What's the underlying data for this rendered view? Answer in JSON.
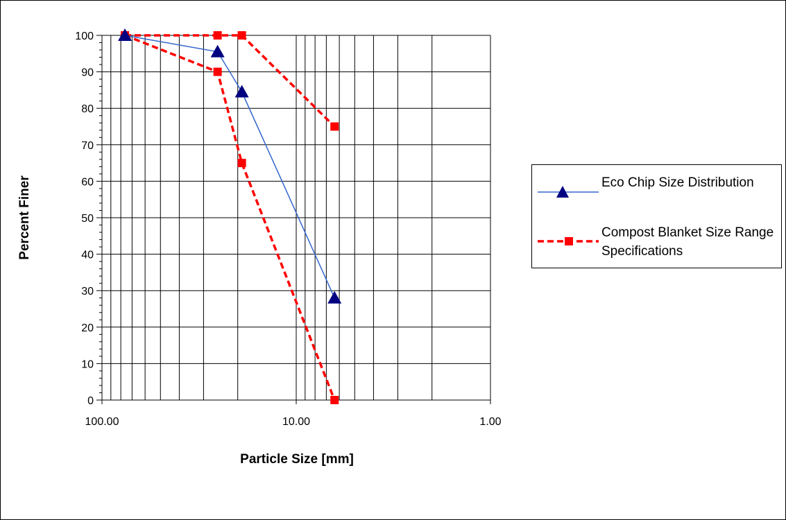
{
  "chart_data": {
    "type": "line",
    "xlabel": "Particle Size [mm]",
    "ylabel": "Percent Finer",
    "x_scale": "log",
    "x_reversed": true,
    "xlim": [
      100,
      1
    ],
    "ylim": [
      0,
      100
    ],
    "x_ticks": [
      "100.00",
      "10.00",
      "1.00"
    ],
    "y_ticks": [
      "0",
      "10",
      "20",
      "30",
      "40",
      "50",
      "60",
      "70",
      "80",
      "90",
      "100"
    ],
    "grid": {
      "vertical": true,
      "horizontal": true
    },
    "legend_position": "right",
    "series": [
      {
        "name": "Eco Chip Size Distribution",
        "color": "#3366cc",
        "marker_color": "#000080",
        "marker": "triangle",
        "line_style": "solid",
        "x": [
          76.2,
          25.4,
          19.05,
          6.35
        ],
        "y": [
          100,
          95.5,
          84.5,
          28
        ]
      },
      {
        "name": "Compost Blanket Size Range Specifications",
        "color": "#ff0000",
        "marker_color": "#ff0000",
        "marker": "square",
        "line_style": "dashed",
        "x": [
          76.2,
          25.4,
          19.05,
          6.35
        ],
        "y_upper": [
          100,
          100,
          100,
          75
        ],
        "y_lower": [
          100,
          90,
          65,
          0
        ]
      }
    ]
  }
}
